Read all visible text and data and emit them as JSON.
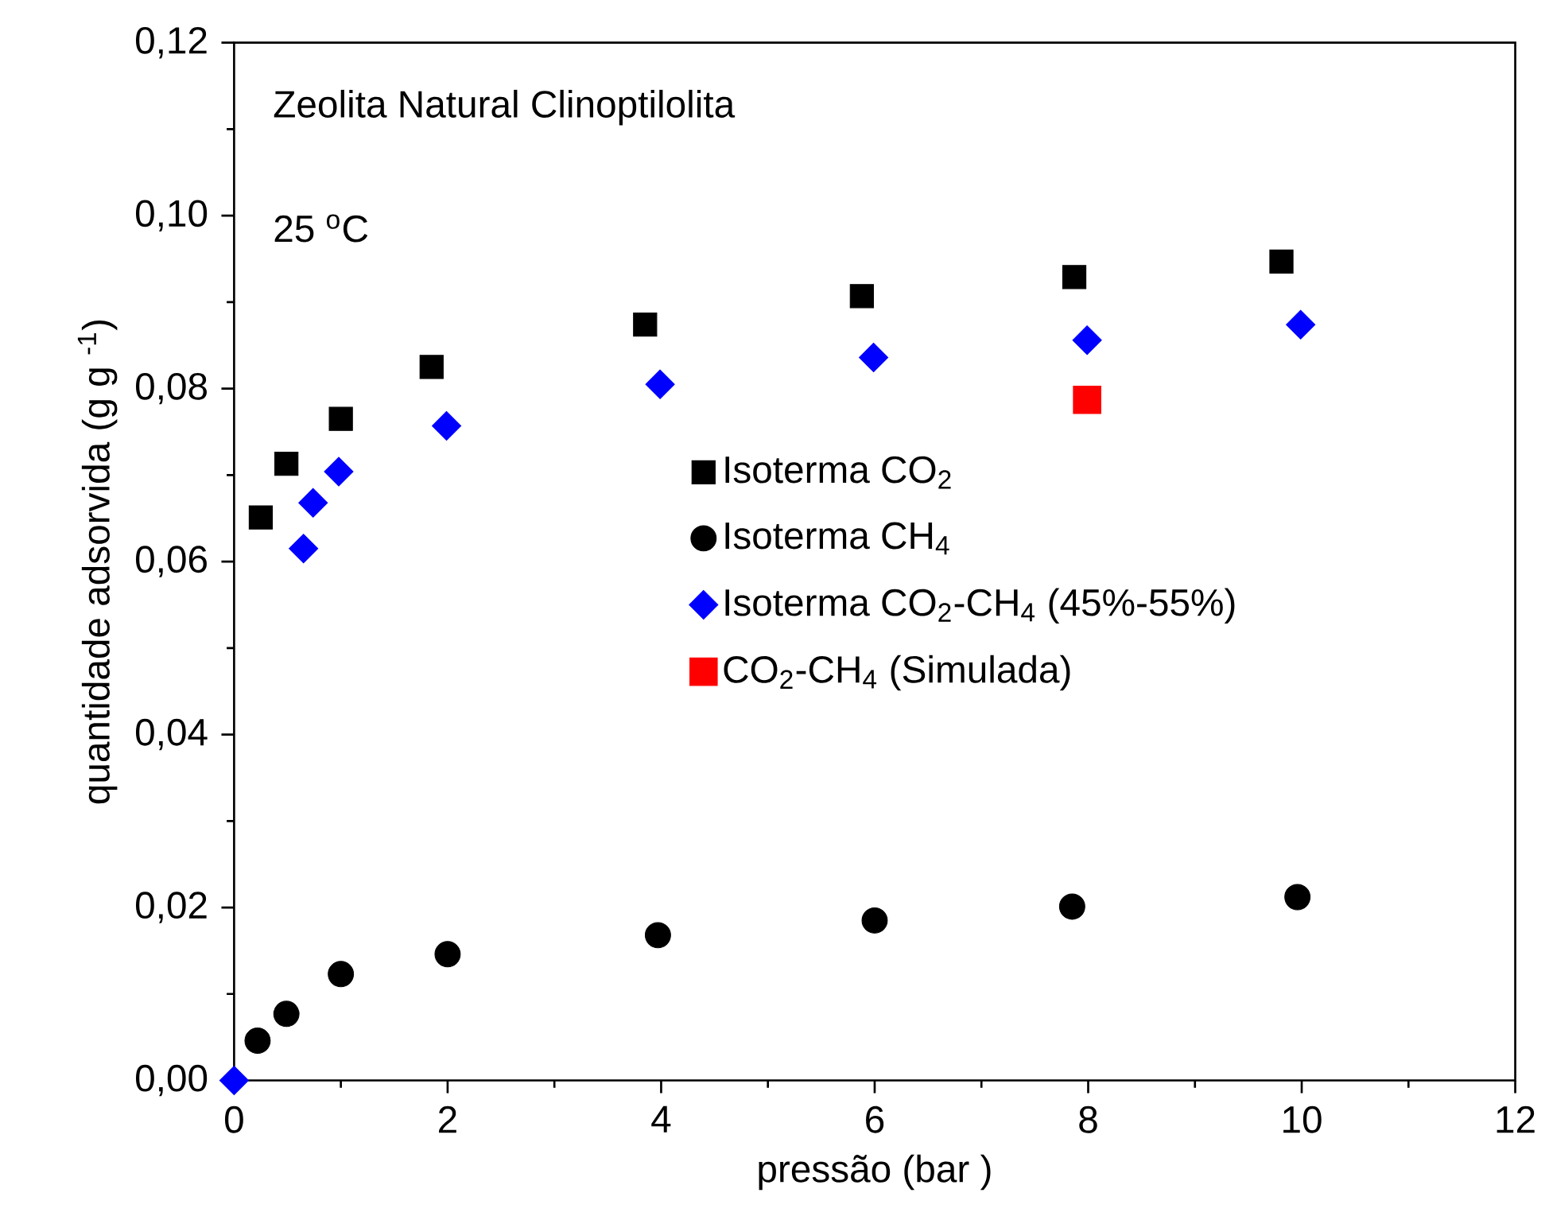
{
  "chart_data": {
    "type": "scatter",
    "xlabel": "pressão (bar )",
    "ylabel": "quantidade adsorvida (g g $^{-1}$)",
    "annotations": [
      "Zeolita Natural Clinoptilolita",
      "25 $^{o}$C"
    ],
    "xlim": [
      0,
      12
    ],
    "xticks": [
      0,
      2,
      4,
      6,
      8,
      10,
      12
    ],
    "ylim": [
      0,
      0.12
    ],
    "yticks": [
      {
        "value": 0,
        "label": "0,00"
      },
      {
        "value": 0.02,
        "label": "0,02"
      },
      {
        "value": 0.04,
        "label": "0,04"
      },
      {
        "value": 0.06,
        "label": "0,06"
      },
      {
        "value": 0.08,
        "label": "0,08"
      },
      {
        "value": 0.1,
        "label": "0,10"
      },
      {
        "value": 0.12,
        "label": "0,12"
      }
    ],
    "legend": "right",
    "series": [
      {
        "name": "Isoterma CO$_{2}$",
        "color": "#000000",
        "marker": "square",
        "x": [
          0.25,
          0.49,
          1.0,
          1.85,
          3.85,
          5.88,
          7.87,
          9.81
        ],
        "values": [
          0.0651,
          0.0713,
          0.0765,
          0.0825,
          0.0874,
          0.0907,
          0.0929,
          0.0947
        ]
      },
      {
        "name": "Isoterma CH$_{4}$",
        "color": "#000000",
        "marker": "circle",
        "x": [
          0.22,
          0.49,
          1.0,
          2.0,
          3.97,
          6.0,
          7.85,
          9.96
        ],
        "values": [
          0.0046,
          0.0077,
          0.0123,
          0.0146,
          0.0168,
          0.0185,
          0.0201,
          0.0212
        ]
      },
      {
        "name": "Isoterma CO$_{2}$-CH$_{4}$ (45%-55%)",
        "color": "#0000ff",
        "marker": "diamond",
        "x": [
          0,
          0.65,
          0.74,
          0.98,
          1.99,
          3.99,
          5.99,
          7.99,
          9.99
        ],
        "values": [
          0,
          0.0615,
          0.0668,
          0.0704,
          0.0757,
          0.0805,
          0.0836,
          0.0856,
          0.0874
        ]
      },
      {
        "name": "CO$_{2}$-CH$_{4}$ (Simulada)",
        "color": "#ff0000",
        "marker": "square",
        "x": [
          7.99
        ],
        "values": [
          0.0787
        ]
      }
    ]
  }
}
